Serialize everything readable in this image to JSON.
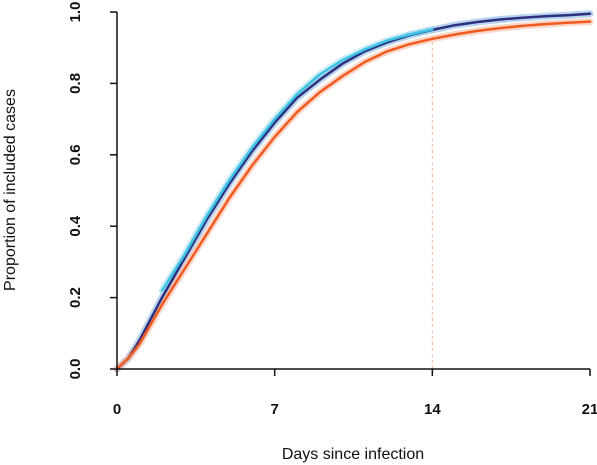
{
  "chart_data": {
    "type": "line",
    "title": "",
    "xlabel": "Days since infection",
    "ylabel": "Proportion of included cases",
    "xlim": [
      0,
      21
    ],
    "ylim": [
      0,
      1.0
    ],
    "x_ticks": [
      0,
      7,
      14,
      21
    ],
    "x_tick_labels": [
      "0",
      "7",
      "14",
      "21"
    ],
    "y_ticks": [
      0,
      0.2,
      0.4,
      0.6,
      0.8,
      1.0
    ],
    "y_tick_labels": [
      "0.0",
      "0.2",
      "0.4",
      "0.6",
      "0.8",
      "1.0"
    ],
    "grid": false,
    "legend": "none",
    "reference_line": {
      "x": 14,
      "color": "#f4b49a",
      "style": "dashed"
    },
    "series": [
      {
        "color": "#2d2f7f",
        "band_color": "#7fb0e0",
        "x": [
          0,
          0.5,
          1,
          2,
          3,
          4,
          5,
          6,
          7,
          8,
          9,
          10,
          11,
          12,
          13,
          14,
          15,
          16,
          17,
          18,
          19,
          20,
          21
        ],
        "y": [
          0,
          0.03,
          0.08,
          0.2,
          0.31,
          0.42,
          0.52,
          0.61,
          0.69,
          0.76,
          0.81,
          0.855,
          0.89,
          0.915,
          0.935,
          0.95,
          0.963,
          0.972,
          0.979,
          0.984,
          0.988,
          0.991,
          0.995
        ]
      },
      {
        "color": "#3cc3e3",
        "band_color": "#9ddcef",
        "x": [
          2,
          3,
          4,
          5,
          6,
          7,
          8,
          9,
          10,
          11,
          12,
          13,
          14
        ],
        "y": [
          0.22,
          0.32,
          0.43,
          0.53,
          0.62,
          0.7,
          0.77,
          0.825,
          0.865,
          0.895,
          0.92,
          0.937,
          0.951
        ]
      },
      {
        "color": "#f25a1e",
        "band_color": "#f8b79e",
        "x": [
          0,
          0.5,
          1,
          2,
          3,
          4,
          5,
          6,
          7,
          8,
          9,
          10,
          11,
          12,
          13,
          14,
          15,
          16,
          17,
          18,
          19,
          20,
          21
        ],
        "y": [
          0,
          0.03,
          0.07,
          0.18,
          0.28,
          0.38,
          0.48,
          0.57,
          0.65,
          0.72,
          0.775,
          0.82,
          0.86,
          0.89,
          0.91,
          0.925,
          0.937,
          0.947,
          0.955,
          0.961,
          0.966,
          0.97,
          0.973
        ]
      }
    ]
  }
}
